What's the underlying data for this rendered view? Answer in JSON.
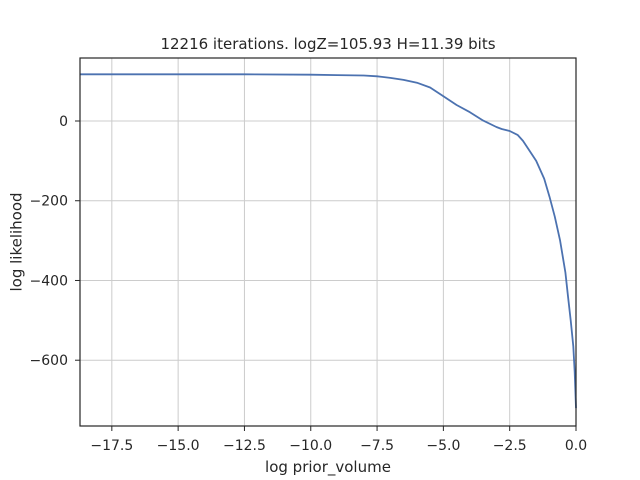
{
  "chart_data": {
    "type": "line",
    "title": "12216 iterations. logZ=105.93 H=11.39 bits",
    "xlabel": "log prior_volume",
    "ylabel": "log likelihood",
    "xlim": [
      -18.7,
      0.0
    ],
    "ylim": [
      -765,
      158
    ],
    "grid": true,
    "xticks": [
      -17.5,
      -15.0,
      -12.5,
      -10.0,
      -7.5,
      -5.0,
      -2.5,
      0.0
    ],
    "xtick_labels": [
      "−17.5",
      "−15.0",
      "−12.5",
      "−10.0",
      "−7.5",
      "−5.0",
      "−2.5",
      "0.0"
    ],
    "yticks": [
      0,
      -200,
      -400,
      -600
    ],
    "ytick_labels": [
      "0",
      "−200",
      "−400",
      "−600"
    ],
    "series": [
      {
        "color": "#4c72b0",
        "x": [
          -18.7,
          -17.5,
          -15.0,
          -12.5,
          -10.0,
          -9.0,
          -8.0,
          -7.5,
          -7.0,
          -6.5,
          -6.0,
          -5.5,
          -5.0,
          -4.5,
          -4.0,
          -3.5,
          -3.0,
          -2.8,
          -2.5,
          -2.2,
          -2.0,
          -1.8,
          -1.5,
          -1.2,
          -1.0,
          -0.8,
          -0.6,
          -0.4,
          -0.3,
          -0.2,
          -0.1,
          -0.05,
          0.0
        ],
        "y": [
          117,
          117,
          117,
          117,
          116,
          115,
          114,
          112,
          108,
          103,
          96,
          84,
          62,
          40,
          22,
          1,
          -15,
          -20,
          -25,
          -35,
          -50,
          -70,
          -100,
          -145,
          -190,
          -240,
          -300,
          -380,
          -440,
          -500,
          -565,
          -630,
          -720
        ]
      }
    ]
  }
}
